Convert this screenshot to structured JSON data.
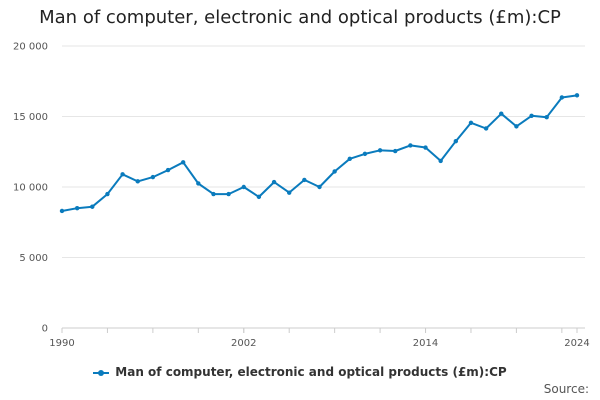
{
  "chart_data": {
    "type": "line",
    "title": "Man of computer, electronic and optical products (£m):CP",
    "xlabel": "",
    "ylabel": "",
    "xlim": [
      1990,
      2024
    ],
    "ylim": [
      0,
      20000
    ],
    "y_ticks": [
      0,
      5000,
      10000,
      15000,
      20000
    ],
    "y_tick_labels": [
      "0",
      "5 000",
      "10 000",
      "15 000",
      "20 000"
    ],
    "x_tick_labels": [
      "1990",
      "2002",
      "2014",
      "2024"
    ],
    "x_tick_values": [
      1990,
      2002,
      2014,
      2024
    ],
    "grid": true,
    "legend_position": "bottom",
    "series": [
      {
        "name": "Man of computer, electronic and optical products (£m):CP",
        "color": "#0a7bbd",
        "x": [
          1990,
          1991,
          1992,
          1993,
          1994,
          1995,
          1996,
          1997,
          1998,
          1999,
          2000,
          2001,
          2002,
          2003,
          2004,
          2005,
          2006,
          2007,
          2008,
          2009,
          2010,
          2011,
          2012,
          2013,
          2014,
          2015,
          2016,
          2017,
          2018,
          2019,
          2020,
          2021,
          2022,
          2023,
          2024
        ],
        "values": [
          8300,
          8500,
          8600,
          9500,
          10900,
          10400,
          10700,
          11200,
          11750,
          10250,
          9500,
          9500,
          10000,
          9300,
          10350,
          9600,
          10500,
          10000,
          11100,
          12000,
          12350,
          12600,
          12550,
          12950,
          12800,
          11850,
          13250,
          14550,
          14150,
          15200,
          14300,
          15050,
          14950,
          16350,
          16500
        ]
      }
    ]
  },
  "legend": {
    "label": "Man of computer, electronic and optical products (£m):CP"
  },
  "source_label": "Source:"
}
